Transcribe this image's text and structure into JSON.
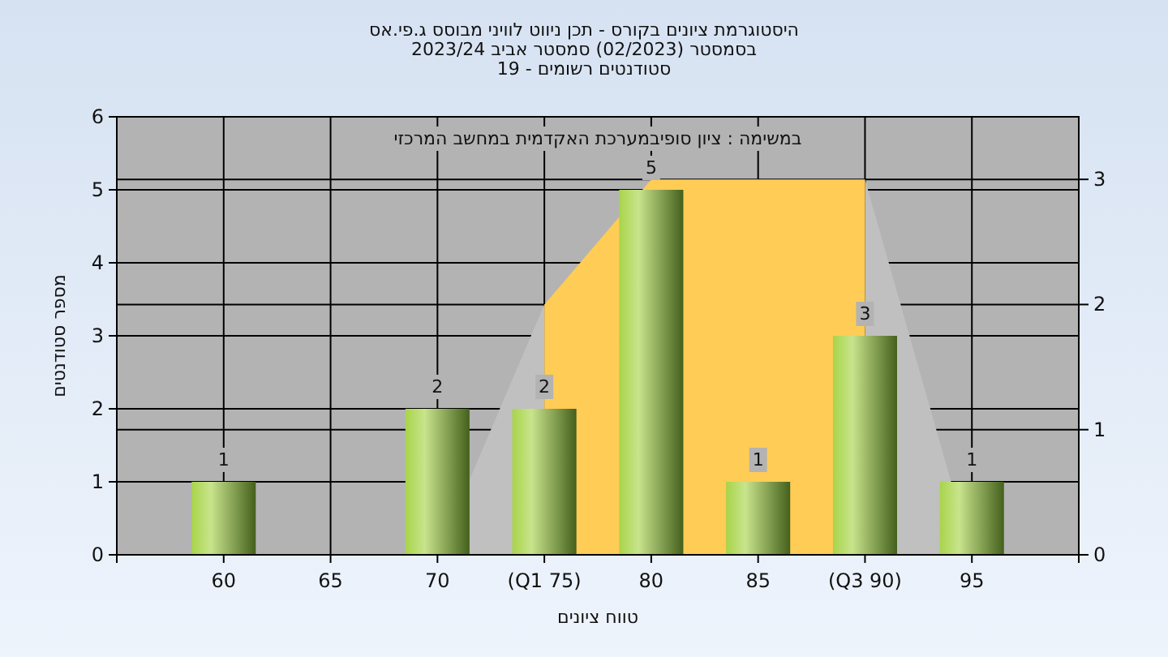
{
  "chart_data": {
    "type": "bar",
    "title": "היסטוגרמת ציונים בקורס - תכן ניווט לוויני מבוסס ג.פי.אס",
    "subtitle": "בסמסטר  (02/2023)  סמסטר אביב 2023/24\nסטודנטים רשומים - 19",
    "annotations": [
      "במשימה : ציון סופיבמערכת האקדמית במחשב המרכזי"
    ],
    "xlabel": "טווח ציונים",
    "ylabel": "מספר סטודנטים",
    "categories": [
      "60",
      "65",
      "70",
      "(Q1 75)",
      "80",
      "85",
      "(Q3 90)",
      "95"
    ],
    "series": [
      {
        "type": "area",
        "axis": "y2",
        "color": "#c0c0c0",
        "values": [
          null,
          null,
          0,
          2,
          null,
          null,
          3,
          0
        ]
      },
      {
        "type": "area",
        "axis": "y2",
        "color": "#ffcc55",
        "values": [
          null,
          null,
          null,
          2,
          3,
          3,
          3,
          null
        ]
      },
      {
        "type": "bar",
        "color": "#8db83a",
        "values": [
          1,
          0,
          2,
          2,
          5,
          1,
          3,
          1
        ],
        "value_labels": [
          "1",
          null,
          "2",
          "2",
          "5",
          "1",
          "3",
          "1"
        ]
      }
    ],
    "ylim": [
      0,
      6
    ],
    "yticks": [
      0,
      1,
      2,
      3,
      4,
      5,
      6
    ],
    "y2lim": [
      0,
      3.5
    ],
    "y2ticks": [
      0,
      1,
      2,
      3
    ],
    "grid": true
  }
}
